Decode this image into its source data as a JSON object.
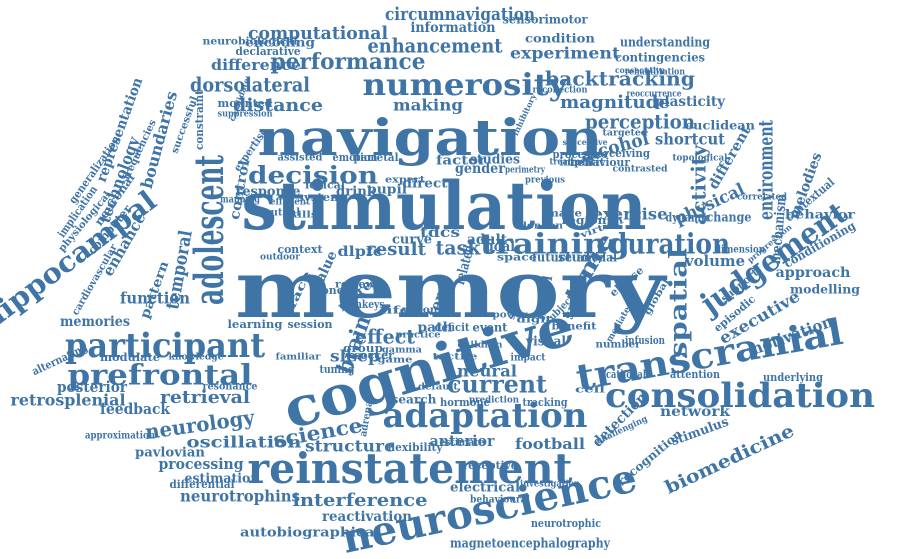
{
  "theme": {
    "word_color": "#3f74a6",
    "background": "#ffffff"
  },
  "words": [
    "memory",
    "stimulation",
    "navigation",
    "cognitive",
    "neuroscience",
    "reinstatement",
    "transcranial",
    "consolidation",
    "participant",
    "adaptation",
    "numerosity",
    "adolescent",
    "hippocampal",
    "judgement",
    "prefrontal",
    "training",
    "duration",
    "decision",
    "spatial",
    "performance",
    "enhancement",
    "backtracking",
    "computational",
    "circumnavigation",
    "perception",
    "magnitude",
    "dorsolateral",
    "distance",
    "interference",
    "environment",
    "biomedicine",
    "current",
    "retrosplenial",
    "retrieval",
    "neurology",
    "oscillation",
    "science",
    "brain",
    "effect",
    "sleep",
    "neural",
    "structure",
    "anterior",
    "football",
    "processing",
    "estimation",
    "neurotrophins",
    "reactivation",
    "autobiographical",
    "magnetoencephalography",
    "neurotrophic",
    "electrical",
    "time",
    "activity",
    "exercise",
    "volume",
    "executive",
    "motivation",
    "approach",
    "modelling",
    "conditioning",
    "behavior",
    "alcohol",
    "shortcut",
    "physical",
    "different",
    "representation",
    "technology",
    "boundaries",
    "temporal",
    "enhance",
    "pattern",
    "function",
    "memories",
    "posterior",
    "feedback",
    "pavlovian",
    "approximation",
    "alternating",
    "modulate",
    "network",
    "stimulus",
    "detection",
    "recognition",
    "experiment",
    "information",
    "sensorimotor",
    "condition",
    "understanding",
    "contingencies",
    "difference",
    "encoding",
    "declarative",
    "neurobiological",
    "making",
    "plasticity",
    "euclidean",
    "mechanism",
    "melodies",
    "contextual",
    "gender",
    "factor",
    "studies",
    "task",
    "result",
    "tdcs",
    "adult",
    "goal",
    "future",
    "study",
    "model",
    "sport",
    "direct",
    "drink",
    "pupil",
    "response",
    "control",
    "parietal",
    "emotion",
    "assisted",
    "expertise",
    "behaviour",
    "dimension",
    "ellipse",
    "infusion",
    "attention",
    "cathodal",
    "underlying",
    "anodal",
    "visual",
    "impact",
    "group",
    "path",
    "deficit",
    "event",
    "tuning",
    "flexibility",
    "estimate",
    "search",
    "hormone",
    "tracking",
    "receptive",
    "behavioural",
    "investigation",
    "challenging",
    "differential",
    "resonance",
    "dlpfc",
    "curve",
    "more",
    "term",
    "value",
    "related",
    "face",
    "neuronal",
    "generalization",
    "implication",
    "physiological",
    "cardiovascular",
    "computer",
    "frequencies",
    "successful",
    "constraint",
    "mounted",
    "suppression",
    "candidate",
    "reoccurrence",
    "recollection",
    "consecutive",
    "rehabilitation",
    "inhibitory",
    "successive",
    "processes",
    "implicit",
    "perceiving",
    "previous",
    "expert",
    "perimetry",
    "treatment",
    "lexical",
    "mapping",
    "mutual",
    "system",
    "efficient",
    "skills",
    "context",
    "outdoor",
    "learning",
    "session",
    "knowledge",
    "familiar",
    "monkeys",
    "vision",
    "soccer",
    "default",
    "prediction",
    "adrenal",
    "region",
    "image",
    "london",
    "dynamic",
    "episodic",
    "children",
    "support",
    "benefit",
    "number",
    "mediated",
    "change",
    "correlated",
    "progression",
    "global",
    "targeted",
    "topological",
    "contrasted",
    "virtual",
    "subjective",
    "space",
    "money",
    "review",
    "life",
    "practice",
    "tactile",
    "gamma",
    "game",
    "signal",
    "cell",
    "digit",
    "power"
  ]
}
